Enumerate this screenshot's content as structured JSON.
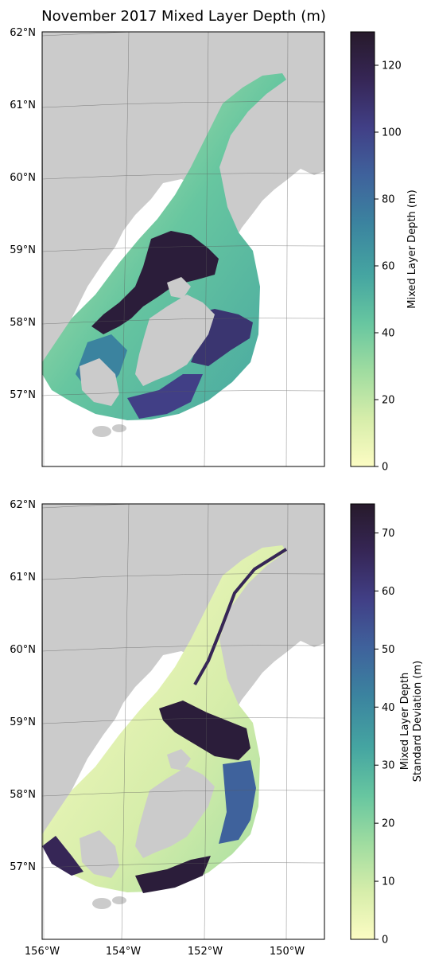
{
  "title": "November 2017 Mixed Layer Depth (m)",
  "colors": {
    "land": "#cbcbcb",
    "grid": "#5a5a5a",
    "frame": "#000000",
    "background": "#ffffff",
    "colormap": [
      "#fcfcc3",
      "#d6edaa",
      "#9fdca0",
      "#67c6a0",
      "#45a5a1",
      "#3b839f",
      "#3f629c",
      "#413f86",
      "#362656",
      "#271a2b"
    ]
  },
  "map": {
    "lat_labels": [
      "62°N",
      "61°N",
      "60°N",
      "59°N",
      "58°N",
      "57°N"
    ],
    "lon_labels": [
      "156°W",
      "154°W",
      "152°W",
      "150°W"
    ]
  },
  "panels": [
    {
      "id": "mean",
      "colorbar": {
        "label": "Mixed Layer Depth (m)",
        "ticks": [
          0,
          20,
          40,
          60,
          80,
          100,
          120
        ],
        "tick_labels": [
          "0",
          "20",
          "40",
          "60",
          "80",
          "100",
          "120"
        ],
        "range": [
          0,
          130
        ]
      }
    },
    {
      "id": "stdev",
      "colorbar": {
        "label_lines": [
          "Mixed Layer Depth",
          "Standard Deviation (m)"
        ],
        "ticks": [
          0,
          10,
          20,
          30,
          40,
          50,
          60,
          70
        ],
        "tick_labels": [
          "0",
          "10",
          "20",
          "30",
          "40",
          "50",
          "60",
          "70"
        ],
        "range": [
          0,
          75
        ]
      }
    }
  ]
}
